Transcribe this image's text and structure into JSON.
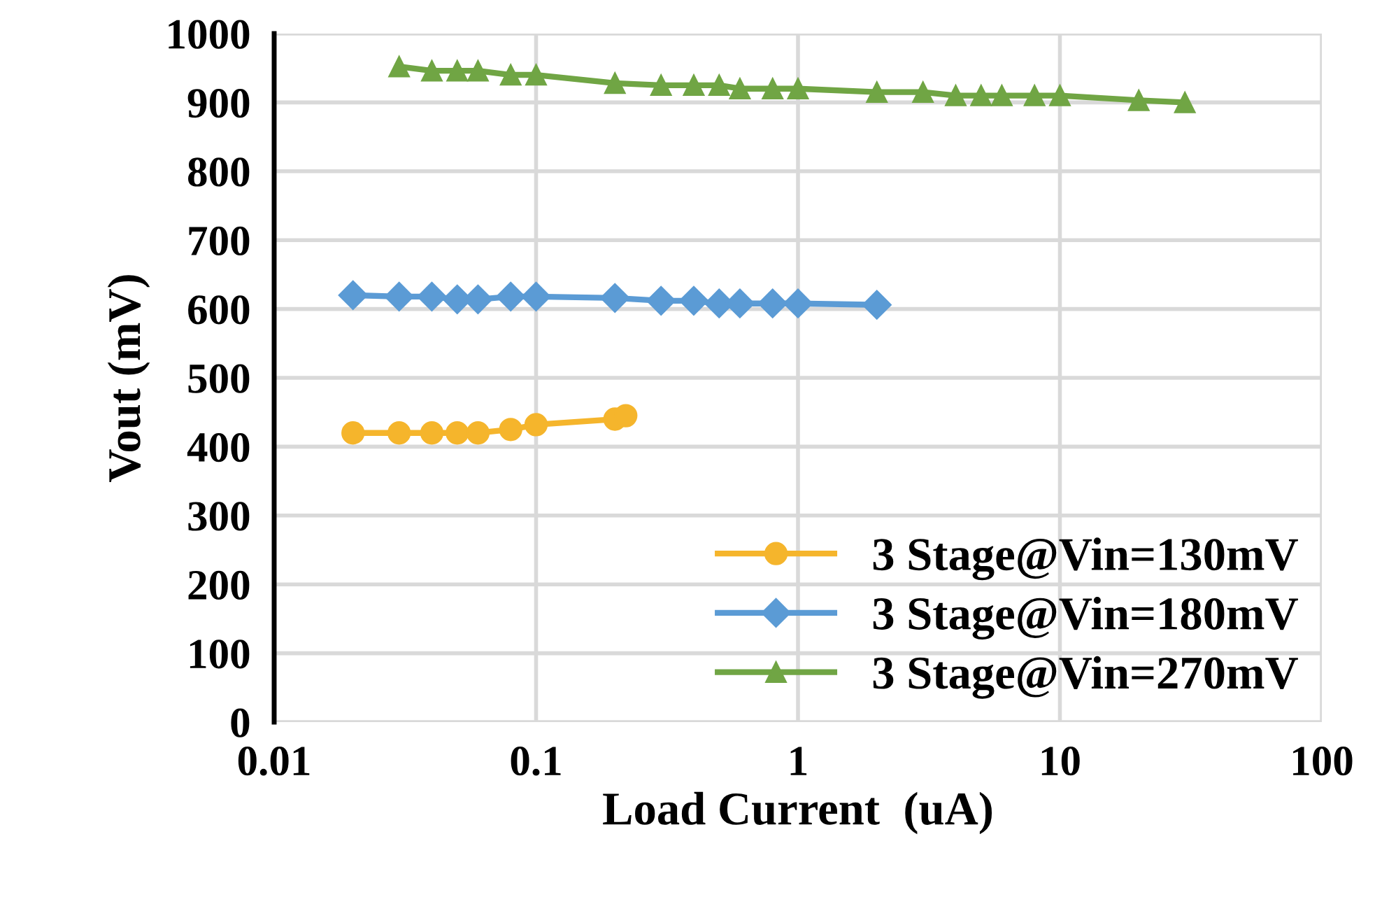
{
  "chart_data": {
    "type": "line",
    "xlabel": "Load Current  (uA)",
    "ylabel": "Vout (mV)",
    "log": "x",
    "grid": true,
    "legend": "bottom right",
    "xlim": [
      0.01,
      100
    ],
    "xticks": [
      0.01,
      0.1,
      1,
      10,
      100
    ],
    "ylim": [
      0,
      1000
    ],
    "yticks": [
      0,
      100,
      200,
      300,
      400,
      500,
      600,
      700,
      800,
      900,
      1000
    ],
    "series": [
      {
        "name": "3 Stage@Vin=130mV",
        "color": "#f5b52c",
        "marker": "circle",
        "x": [
          0.02,
          0.03,
          0.04,
          0.05,
          0.06,
          0.08,
          0.1,
          0.2,
          0.22
        ],
        "values": [
          420,
          420,
          420,
          420,
          420,
          425,
          432,
          440,
          445
        ]
      },
      {
        "name": "3 Stage@Vin=180mV",
        "color": "#5b9bd5",
        "marker": "diamond",
        "x": [
          0.02,
          0.03,
          0.04,
          0.05,
          0.06,
          0.08,
          0.1,
          0.2,
          0.3,
          0.4,
          0.5,
          0.6,
          0.8,
          1,
          2
        ],
        "values": [
          620,
          618,
          618,
          614,
          614,
          618,
          618,
          616,
          612,
          612,
          608,
          608,
          608,
          608,
          606
        ]
      },
      {
        "name": "3 Stage@Vin=270mV",
        "color": "#70a544",
        "marker": "triangle",
        "x": [
          0.03,
          0.04,
          0.05,
          0.06,
          0.08,
          0.1,
          0.2,
          0.3,
          0.4,
          0.5,
          0.6,
          0.8,
          1,
          2,
          3,
          4,
          5,
          6,
          8,
          10,
          20,
          30
        ],
        "values": [
          952,
          946,
          946,
          946,
          940,
          940,
          928,
          925,
          925,
          925,
          920,
          920,
          920,
          915,
          915,
          910,
          910,
          910,
          910,
          910,
          903,
          900
        ]
      }
    ]
  }
}
